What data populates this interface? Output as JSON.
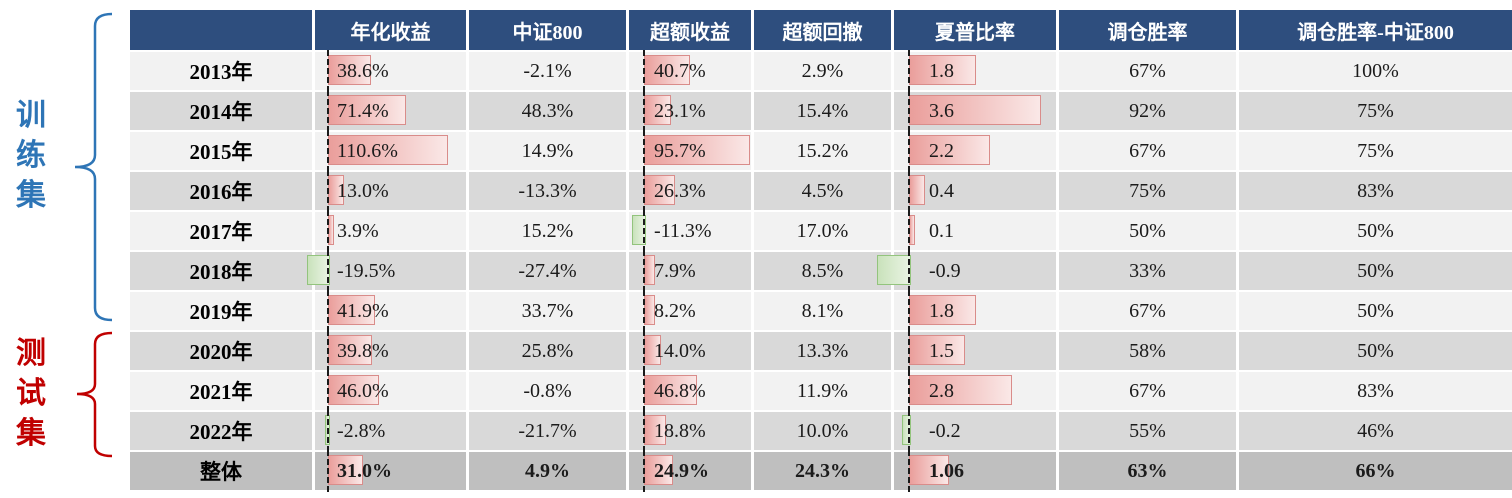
{
  "side_labels": {
    "train": "训练集",
    "test": "测试集"
  },
  "colors": {
    "header_bg": "#2E4E7E",
    "row_light": "#F2F2F2",
    "row_dark": "#D9D9D9",
    "total_row_bg": "#BFBFBF",
    "bar_positive_border": "#D98C8A",
    "bar_positive_fill": "#EA9E9B",
    "bar_negative_border": "#93C47D",
    "bar_negative_fill": "#C9E2BB",
    "train_label_color": "#2E75B6",
    "test_label_color": "#C00000",
    "zero_axis_color": "#1a1a1a"
  },
  "chart_data": {
    "type": "table",
    "title": "",
    "columns": [
      "",
      "年化收益",
      "中证800",
      "超额收益",
      "超额回撤",
      "夏普比率",
      "调仓胜率",
      "调仓胜率-中证800"
    ],
    "bar_column_indices": [
      0,
      2,
      4
    ],
    "row_groups": [
      {
        "label": "训练集",
        "rows": [
          "2013年",
          "2014年",
          "2015年",
          "2016年",
          "2017年",
          "2018年",
          "2019年"
        ]
      },
      {
        "label": "测试集",
        "rows": [
          "2020年",
          "2021年",
          "2022年"
        ]
      }
    ],
    "rows": [
      {
        "label": "2013年",
        "cells": [
          "38.6%",
          "-2.1%",
          "40.7%",
          "2.9%",
          "1.8",
          "67%",
          "100%"
        ],
        "bar_values": [
          38.6,
          null,
          40.7,
          null,
          1.8,
          null,
          null
        ],
        "is_total": false
      },
      {
        "label": "2014年",
        "cells": [
          "71.4%",
          "48.3%",
          "23.1%",
          "15.4%",
          "3.6",
          "92%",
          "75%"
        ],
        "bar_values": [
          71.4,
          null,
          23.1,
          null,
          3.6,
          null,
          null
        ],
        "is_total": false
      },
      {
        "label": "2015年",
        "cells": [
          "110.6%",
          "14.9%",
          "95.7%",
          "15.2%",
          "2.2",
          "67%",
          "75%"
        ],
        "bar_values": [
          110.6,
          null,
          95.7,
          null,
          2.2,
          null,
          null
        ],
        "is_total": false
      },
      {
        "label": "2016年",
        "cells": [
          "13.0%",
          "-13.3%",
          "26.3%",
          "4.5%",
          "0.4",
          "75%",
          "83%"
        ],
        "bar_values": [
          13.0,
          null,
          26.3,
          null,
          0.4,
          null,
          null
        ],
        "is_total": false
      },
      {
        "label": "2017年",
        "cells": [
          "3.9%",
          "15.2%",
          "-11.3%",
          "17.0%",
          "0.1",
          "50%",
          "50%"
        ],
        "bar_values": [
          3.9,
          null,
          -11.3,
          null,
          0.1,
          null,
          null
        ],
        "is_total": false
      },
      {
        "label": "2018年",
        "cells": [
          "-19.5%",
          "-27.4%",
          "7.9%",
          "8.5%",
          "-0.9",
          "33%",
          "50%"
        ],
        "bar_values": [
          -19.5,
          null,
          7.9,
          null,
          -0.9,
          null,
          null
        ],
        "is_total": false
      },
      {
        "label": "2019年",
        "cells": [
          "41.9%",
          "33.7%",
          "8.2%",
          "8.1%",
          "1.8",
          "67%",
          "50%"
        ],
        "bar_values": [
          41.9,
          null,
          8.2,
          null,
          1.8,
          null,
          null
        ],
        "is_total": false
      },
      {
        "label": "2020年",
        "cells": [
          "39.8%",
          "25.8%",
          "14.0%",
          "13.3%",
          "1.5",
          "58%",
          "50%"
        ],
        "bar_values": [
          39.8,
          null,
          14.0,
          null,
          1.5,
          null,
          null
        ],
        "is_total": false
      },
      {
        "label": "2021年",
        "cells": [
          "46.0%",
          "-0.8%",
          "46.8%",
          "11.9%",
          "2.8",
          "67%",
          "83%"
        ],
        "bar_values": [
          46.0,
          null,
          46.8,
          null,
          2.8,
          null,
          null
        ],
        "is_total": false
      },
      {
        "label": "2022年",
        "cells": [
          "-2.8%",
          "-21.7%",
          "18.8%",
          "10.0%",
          "-0.2",
          "55%",
          "46%"
        ],
        "bar_values": [
          -2.8,
          null,
          18.8,
          null,
          -0.2,
          null,
          null
        ],
        "is_total": false
      },
      {
        "label": "整体",
        "cells": [
          "31.0%",
          "4.9%",
          "24.9%",
          "24.3%",
          "1.06",
          "63%",
          "66%"
        ],
        "bar_values": [
          31.0,
          null,
          24.9,
          null,
          1.06,
          null,
          null
        ],
        "is_total": true
      }
    ]
  }
}
